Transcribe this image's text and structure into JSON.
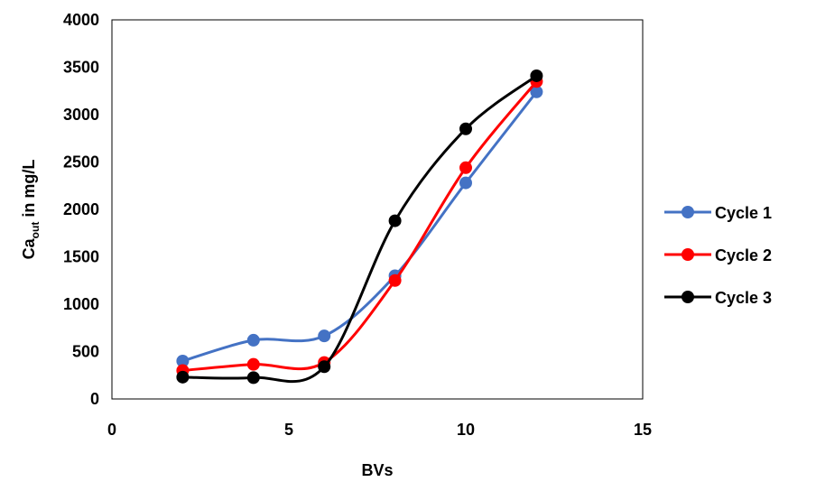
{
  "chart_data": {
    "type": "scatter",
    "smooth": true,
    "xlabel": "BVs",
    "ylabel": {
      "main": "Ca",
      "subscript": "out",
      "rest": " in mg/L"
    },
    "xlim": [
      0,
      15
    ],
    "ylim": [
      0,
      4000
    ],
    "xticks": [
      0,
      5,
      10,
      15
    ],
    "yticks": [
      0,
      500,
      1000,
      1500,
      2000,
      2500,
      3000,
      3500,
      4000
    ],
    "xtick_labels": [
      "0",
      "5",
      "10",
      "15"
    ],
    "ytick_labels": [
      "0",
      "500",
      "1000",
      "1500",
      "2000",
      "2500",
      "3000",
      "3500",
      "4000"
    ],
    "grid": false,
    "legend_position": "right",
    "series": [
      {
        "name": "Cycle 1",
        "color": "#4472C4",
        "x": [
          2,
          4,
          6,
          8,
          10,
          12
        ],
        "y": [
          400,
          620,
          665,
          1300,
          2280,
          3240
        ]
      },
      {
        "name": "Cycle 2",
        "color": "#FF0000",
        "x": [
          2,
          4,
          6,
          8,
          10,
          12
        ],
        "y": [
          300,
          365,
          385,
          1250,
          2440,
          3350
        ]
      },
      {
        "name": "Cycle 3",
        "color": "#000000",
        "x": [
          2,
          4,
          6,
          8,
          10,
          12
        ],
        "y": [
          230,
          225,
          340,
          1880,
          2850,
          3410
        ]
      }
    ]
  }
}
